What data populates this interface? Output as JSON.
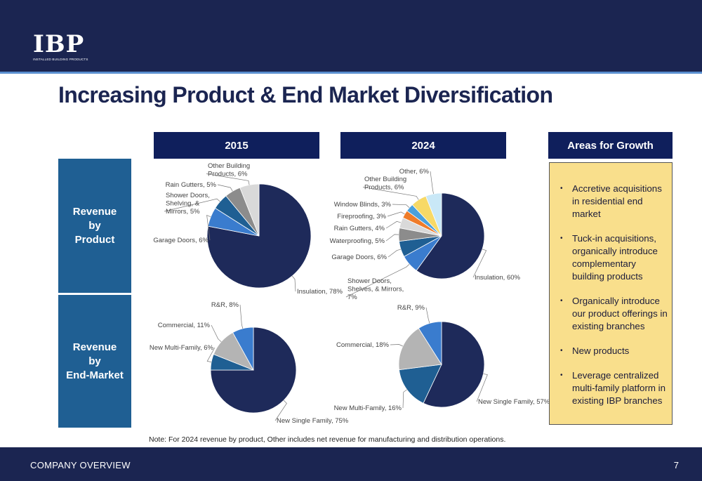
{
  "header": {
    "logo_text": "IBP",
    "logo_subtext": "INSTALLED BUILDING PRODUCTS",
    "title": "Increasing Product & End Market Diversification"
  },
  "columns": {
    "col_2015": "2015",
    "col_2024": "2024",
    "growth": "Areas for Growth"
  },
  "rows": {
    "product": [
      "Revenue",
      "by",
      "Product"
    ],
    "end_market": [
      "Revenue",
      "by",
      "End-Market"
    ]
  },
  "colors": {
    "navy": "#1b2551",
    "dark_navy": "#1e2a5a",
    "blue": "#3a7cce",
    "steel": "#1f5f93",
    "gray": "#8c8c8c",
    "light_gray": "#d9d9d9",
    "growth_bg": "#f9df8c"
  },
  "growth_items": [
    "Accretive acquisitions in residential end market",
    "Tuck-in acquisitions, organically introduce complementary building products",
    "Organically introduce our product offerings in existing branches",
    "New products",
    "Leverage centralized multi-family platform in existing IBP branches"
  ],
  "chart_data": [
    {
      "type": "pie",
      "title": "2015 Revenue by Product",
      "slices": [
        {
          "label": "Insulation, 78%",
          "value": 78,
          "color": "#1e2a5a"
        },
        {
          "label": "Garage Doors, 6%",
          "value": 6,
          "color": "#3a7cce"
        },
        {
          "label": "Shower Doors, Shelving, & Mirrors, 5%",
          "value": 5,
          "color": "#1f5f93"
        },
        {
          "label": "Rain Gutters, 5%",
          "value": 5,
          "color": "#8c8c8c"
        },
        {
          "label": "Other Building Products, 6%",
          "value": 6,
          "color": "#d9d9d9"
        }
      ]
    },
    {
      "type": "pie",
      "title": "2024 Revenue by Product",
      "slices": [
        {
          "label": "Insulation, 60%",
          "value": 60,
          "color": "#1e2a5a"
        },
        {
          "label": "Shower Doors, Shelves, & Mirrors, 7%",
          "value": 7,
          "color": "#3a7cce"
        },
        {
          "label": "Garage Doors, 6%",
          "value": 6,
          "color": "#1f5f93"
        },
        {
          "label": "Waterproofing, 5%",
          "value": 5,
          "color": "#8c8c8c"
        },
        {
          "label": "Rain Gutters, 4%",
          "value": 4,
          "color": "#d9d9d9"
        },
        {
          "label": "Fireproofing, 3%",
          "value": 3,
          "color": "#ef7c2a"
        },
        {
          "label": "Window Blinds, 3%",
          "value": 3,
          "color": "#4aa0dc"
        },
        {
          "label": "Other Building Products, 6%",
          "value": 6,
          "color": "#f7d966"
        },
        {
          "label": "Other, 6%",
          "value": 6,
          "color": "#c9e8f7"
        }
      ]
    },
    {
      "type": "pie",
      "title": "2015 Revenue by End-Market",
      "slices": [
        {
          "label": "New Single Family, 75%",
          "value": 75,
          "color": "#1e2a5a"
        },
        {
          "label": "New Multi-Family, 6%",
          "value": 6,
          "color": "#1f5f93"
        },
        {
          "label": "Commercial, 11%",
          "value": 11,
          "color": "#b4b4b4"
        },
        {
          "label": "R&R, 8%",
          "value": 8,
          "color": "#3a7cce"
        }
      ]
    },
    {
      "type": "pie",
      "title": "2024 Revenue by End-Market",
      "slices": [
        {
          "label": "New Single Family, 57%",
          "value": 57,
          "color": "#1e2a5a"
        },
        {
          "label": "New Multi-Family, 16%",
          "value": 16,
          "color": "#1f5f93"
        },
        {
          "label": "Commercial, 18%",
          "value": 18,
          "color": "#b4b4b4"
        },
        {
          "label": "R&R, 9%",
          "value": 9,
          "color": "#3a7cce"
        }
      ]
    }
  ],
  "note": "Note: For 2024 revenue by product, Other includes net revenue for manufacturing and distribution operations.",
  "footer": {
    "section": "COMPANY OVERVIEW",
    "page": "7"
  }
}
